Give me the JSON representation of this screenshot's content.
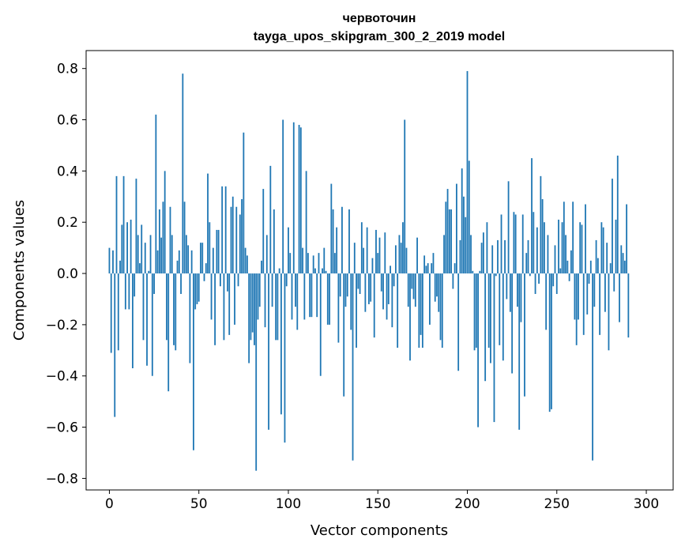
{
  "chart_data": {
    "type": "bar",
    "title": "червоточин",
    "subtitle": "tayga_upos_skipgram_300_2_2019 model",
    "xlabel": "Vector components",
    "ylabel": "Components values",
    "xlim": [
      -13,
      315
    ],
    "ylim": [
      -0.845,
      0.87
    ],
    "xticks": [
      0,
      50,
      100,
      150,
      200,
      250,
      300
    ],
    "yticks": [
      -0.8,
      -0.6,
      -0.4,
      -0.2,
      0.0,
      0.2,
      0.4,
      0.6,
      0.8
    ],
    "xtick_labels": [
      "0",
      "50",
      "100",
      "150",
      "200",
      "250",
      "300"
    ],
    "ytick_labels": [
      "−0.8",
      "−0.6",
      "−0.4",
      "−0.2",
      "0.0",
      "0.2",
      "0.4",
      "0.6",
      "0.8"
    ],
    "color": "#1f77b4",
    "values": [
      0.1,
      -0.31,
      0.09,
      -0.56,
      0.38,
      -0.3,
      0.05,
      0.19,
      0.38,
      -0.14,
      0.2,
      -0.14,
      0.21,
      -0.37,
      -0.09,
      0.37,
      0.15,
      0.04,
      0.19,
      -0.26,
      0.12,
      -0.36,
      0.01,
      0.15,
      -0.4,
      -0.08,
      0.62,
      0.09,
      0.25,
      0.14,
      0.28,
      0.4,
      -0.26,
      -0.46,
      0.26,
      0.15,
      -0.28,
      -0.3,
      0.05,
      0.09,
      -0.08,
      0.78,
      0.28,
      0.15,
      0.11,
      -0.35,
      0.09,
      -0.69,
      -0.14,
      -0.12,
      -0.11,
      0.12,
      0.12,
      -0.03,
      0.04,
      0.39,
      0.2,
      -0.18,
      0.1,
      -0.28,
      0.17,
      0.17,
      -0.05,
      0.34,
      -0.26,
      0.34,
      -0.07,
      -0.24,
      0.26,
      0.3,
      -0.2,
      0.26,
      -0.05,
      0.23,
      0.29,
      0.55,
      0.1,
      0.07,
      -0.35,
      -0.26,
      -0.23,
      -0.28,
      -0.77,
      -0.18,
      -0.13,
      0.05,
      0.33,
      -0.21,
      0.15,
      -0.61,
      0.42,
      -0.13,
      0.25,
      -0.26,
      -0.26,
      0.02,
      -0.55,
      0.6,
      -0.66,
      -0.05,
      0.18,
      0.08,
      -0.18,
      0.59,
      -0.13,
      -0.22,
      0.58,
      0.57,
      0.1,
      -0.18,
      0.4,
      0.08,
      -0.17,
      -0.17,
      0.07,
      0.02,
      -0.17,
      0.08,
      -0.4,
      0.02,
      0.1,
      0.01,
      -0.2,
      -0.2,
      0.35,
      0.25,
      0.08,
      0.18,
      -0.27,
      -0.09,
      0.26,
      -0.48,
      -0.13,
      -0.09,
      0.25,
      -0.22,
      -0.73,
      0.12,
      -0.29,
      -0.06,
      -0.08,
      0.2,
      0.1,
      -0.15,
      0.18,
      -0.12,
      -0.11,
      0.06,
      -0.25,
      0.17,
      0.08,
      0.14,
      -0.07,
      -0.14,
      0.16,
      -0.18,
      -0.12,
      0.03,
      -0.21,
      -0.05,
      0.11,
      -0.29,
      0.15,
      0.12,
      0.2,
      0.6,
      0.1,
      -0.13,
      -0.34,
      -0.06,
      -0.1,
      -0.13,
      0.14,
      -0.29,
      -0.24,
      -0.29,
      0.07,
      0.03,
      0.04,
      -0.2,
      0.04,
      0.08,
      -0.11,
      -0.09,
      -0.15,
      -0.26,
      -0.29,
      0.15,
      0.28,
      0.33,
      0.25,
      0.25,
      -0.06,
      0.04,
      0.35,
      -0.38,
      0.13,
      0.41,
      0.3,
      0.22,
      0.79,
      0.44,
      0.15,
      0.01,
      -0.3,
      -0.29,
      -0.6,
      0.01,
      0.12,
      0.16,
      -0.42,
      0.2,
      -0.29,
      -0.35,
      0.11,
      -0.58,
      -0.01,
      0.13,
      -0.28,
      0.23,
      -0.34,
      0.13,
      -0.1,
      0.36,
      -0.15,
      -0.39,
      0.24,
      0.23,
      -0.13,
      -0.61,
      -0.19,
      0.23,
      -0.48,
      0.08,
      0.13,
      -0.01,
      0.45,
      0.24,
      -0.08,
      0.18,
      -0.04,
      0.38,
      0.29,
      0.2,
      -0.22,
      0.15,
      -0.54,
      -0.53,
      -0.05,
      0.11,
      -0.08,
      0.21,
      0.02,
      0.2,
      0.28,
      0.15,
      0.05,
      -0.03,
      0.09,
      0.28,
      -0.18,
      -0.28,
      -0.18,
      0.2,
      0.19,
      -0.24,
      0.27,
      -0.16,
      -0.04,
      0.05,
      -0.73,
      -0.13,
      0.13,
      0.06,
      -0.24,
      0.2,
      0.18,
      -0.15,
      0.12,
      -0.3,
      0.04,
      0.37,
      -0.07,
      0.21,
      0.46,
      -0.19,
      0.11,
      0.08,
      0.05,
      0.27,
      -0.25
    ]
  }
}
